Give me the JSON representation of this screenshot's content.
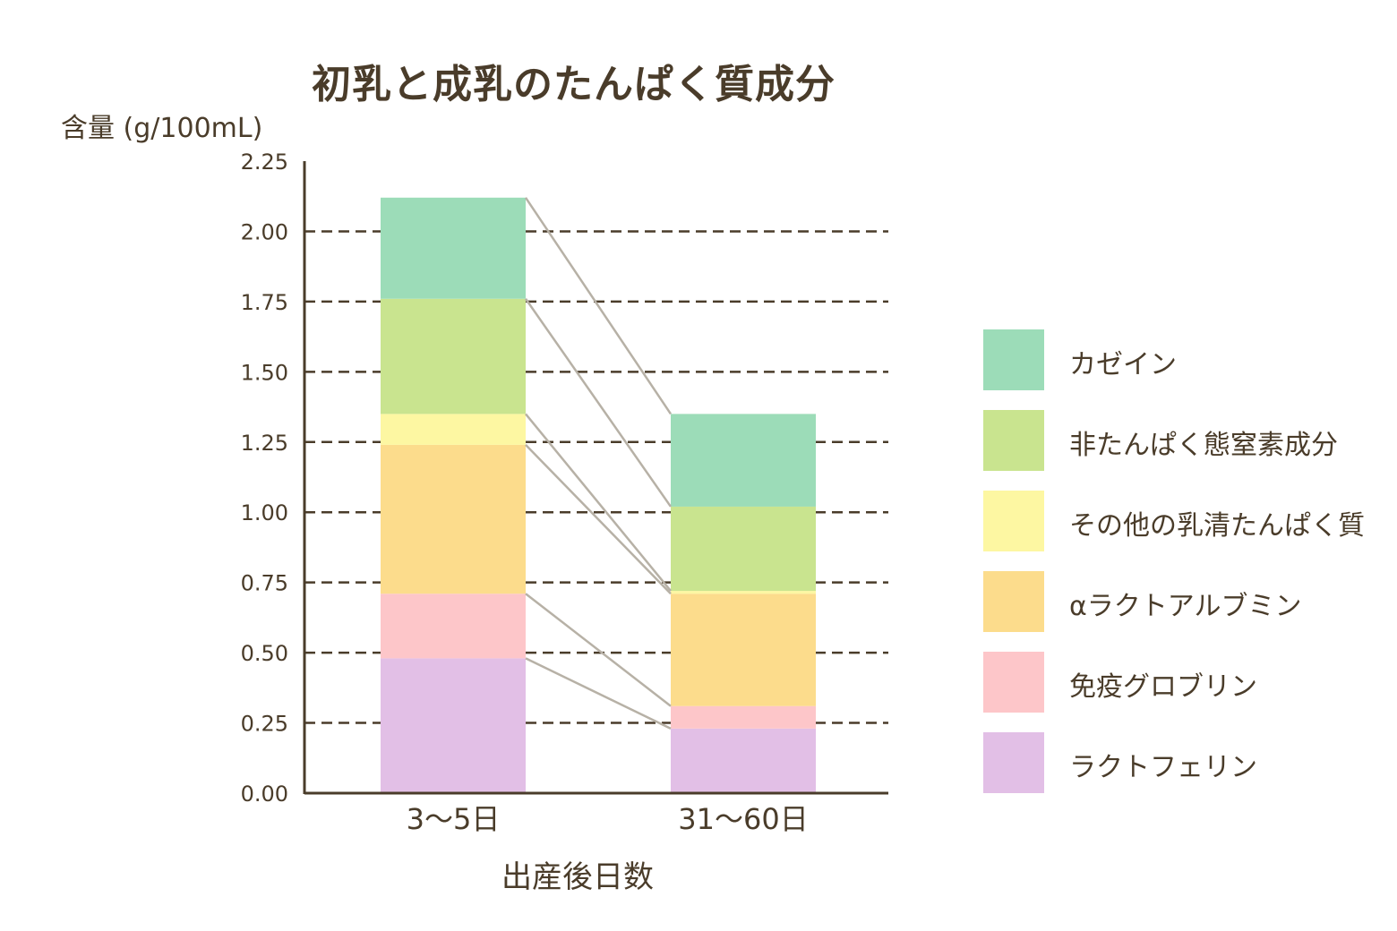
{
  "chart_data": {
    "type": "bar",
    "stacked": true,
    "title": "初乳と成乳のたんぱく質成分",
    "ylabel": "含量 (g/100mL)",
    "xlabel": "出産後日数",
    "categories": [
      "3〜5日",
      "31〜60日"
    ],
    "ylim": [
      0,
      2.25
    ],
    "yticks": [
      "0.00",
      "0.25",
      "0.50",
      "0.75",
      "1.00",
      "1.25",
      "1.50",
      "1.75",
      "2.00",
      "2.25"
    ],
    "grid": "dashed-horizontal",
    "legend_position": "right",
    "connector_lines": true,
    "series": [
      {
        "name": "ラクトフェリン",
        "color": "#e2bfe6",
        "values": [
          0.48,
          0.23
        ]
      },
      {
        "name": "免疫グロブリン",
        "color": "#fdc6c9",
        "values": [
          0.23,
          0.08
        ]
      },
      {
        "name": "αラクトアルブミン",
        "color": "#fcdc8c",
        "values": [
          0.53,
          0.4
        ]
      },
      {
        "name": "その他の乳清たんぱく質",
        "color": "#fdf7a2",
        "values": [
          0.11,
          0.01
        ]
      },
      {
        "name": "非たんぱく態窒素成分",
        "color": "#c9e48f",
        "values": [
          0.41,
          0.3
        ]
      },
      {
        "name": "カゼイン",
        "color": "#9cdcb8",
        "values": [
          0.36,
          0.33
        ]
      }
    ]
  },
  "legend_order": [
    5,
    4,
    3,
    2,
    1,
    0
  ]
}
